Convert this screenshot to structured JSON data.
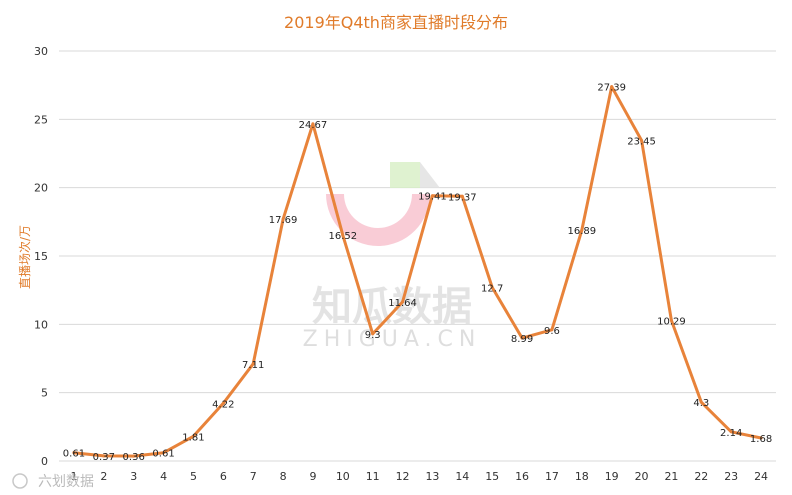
{
  "chart_data": {
    "type": "line",
    "title": "2019年Q4th商家直播时段分布",
    "xlabel": "",
    "ylabel": "直播场次/万",
    "ylim": [
      0,
      30
    ],
    "yticks": [
      0,
      5,
      10,
      15,
      20,
      25,
      30
    ],
    "categories": [
      "1",
      "2",
      "3",
      "4",
      "5",
      "6",
      "7",
      "8",
      "9",
      "10",
      "11",
      "12",
      "13",
      "14",
      "15",
      "16",
      "17",
      "18",
      "19",
      "20",
      "21",
      "22",
      "23",
      "24"
    ],
    "series": [
      {
        "values": [
          0.61,
          0.37,
          0.36,
          0.61,
          1.81,
          4.22,
          7.11,
          17.69,
          24.67,
          16.52,
          9.3,
          11.64,
          19.41,
          19.37,
          12.7,
          8.99,
          9.6,
          16.89,
          27.39,
          23.45,
          10.29,
          4.3,
          2.14,
          1.68
        ],
        "labels": [
          "0.61",
          "0.37",
          "0.36",
          "0.61",
          "1.81",
          "4.22",
          "7.11",
          "17.69",
          "24.67",
          "16.52",
          "9.3",
          "11.64",
          "19.41",
          "19.37",
          "12.7",
          "8.99",
          "9.6",
          "16.89",
          "27.39",
          "23.45",
          "10.29",
          "4.3",
          "2.14",
          "1.68"
        ],
        "color": "#e8833a"
      }
    ],
    "grid": true,
    "legend": "none"
  },
  "watermark": {
    "text": "知瓜数据",
    "subtext": "ZHIGUA.CN",
    "colors": [
      "#f7bfcc",
      "#d7efc4",
      "#fbe3c9"
    ]
  },
  "corner_watermark": "六划数据"
}
